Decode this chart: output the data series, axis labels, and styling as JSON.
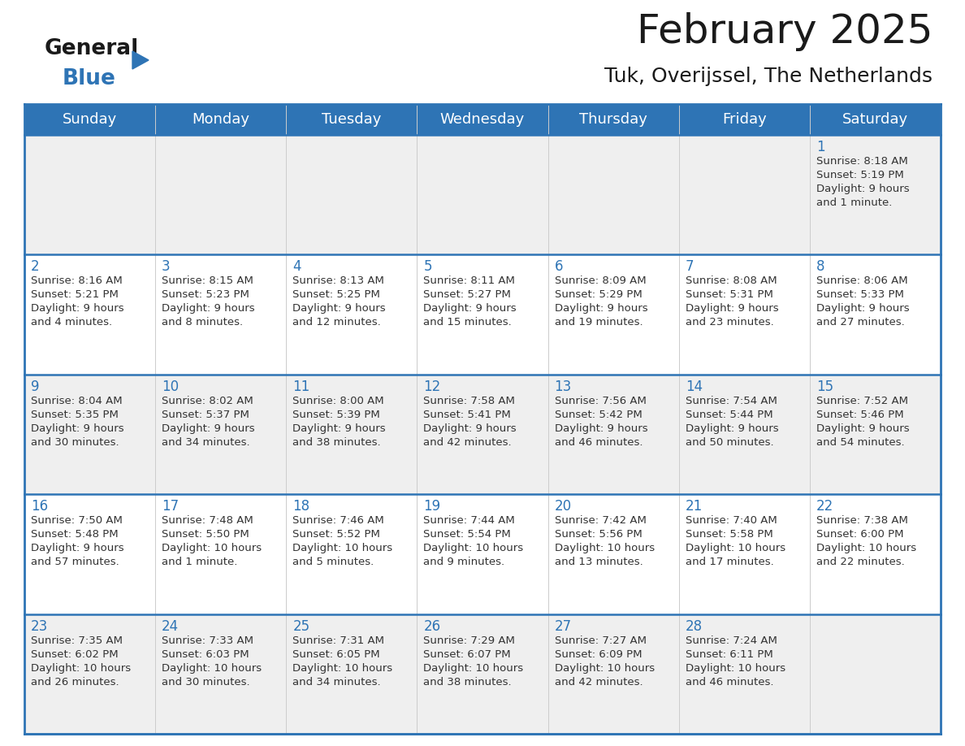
{
  "title": "February 2025",
  "subtitle": "Tuk, Overijssel, The Netherlands",
  "days_of_week": [
    "Sunday",
    "Monday",
    "Tuesday",
    "Wednesday",
    "Thursday",
    "Friday",
    "Saturday"
  ],
  "header_bg": "#2E74B5",
  "header_text": "#FFFFFF",
  "row_bg_odd": "#EFEFEF",
  "row_bg_even": "#FFFFFF",
  "day_num_color": "#2E74B5",
  "cell_text_color": "#333333",
  "border_color": "#2E74B5",
  "background_color": "#FFFFFF",
  "logo_general_color": "#1a1a1a",
  "logo_blue_color": "#2E74B5",
  "title_fontsize": 36,
  "subtitle_fontsize": 18,
  "header_fontsize": 13,
  "day_num_fontsize": 12,
  "cell_text_fontsize": 9.5,
  "calendar_data": [
    [
      {
        "day": null,
        "info": null
      },
      {
        "day": null,
        "info": null
      },
      {
        "day": null,
        "info": null
      },
      {
        "day": null,
        "info": null
      },
      {
        "day": null,
        "info": null
      },
      {
        "day": null,
        "info": null
      },
      {
        "day": "1",
        "info": "Sunrise: 8:18 AM\nSunset: 5:19 PM\nDaylight: 9 hours\nand 1 minute."
      }
    ],
    [
      {
        "day": "2",
        "info": "Sunrise: 8:16 AM\nSunset: 5:21 PM\nDaylight: 9 hours\nand 4 minutes."
      },
      {
        "day": "3",
        "info": "Sunrise: 8:15 AM\nSunset: 5:23 PM\nDaylight: 9 hours\nand 8 minutes."
      },
      {
        "day": "4",
        "info": "Sunrise: 8:13 AM\nSunset: 5:25 PM\nDaylight: 9 hours\nand 12 minutes."
      },
      {
        "day": "5",
        "info": "Sunrise: 8:11 AM\nSunset: 5:27 PM\nDaylight: 9 hours\nand 15 minutes."
      },
      {
        "day": "6",
        "info": "Sunrise: 8:09 AM\nSunset: 5:29 PM\nDaylight: 9 hours\nand 19 minutes."
      },
      {
        "day": "7",
        "info": "Sunrise: 8:08 AM\nSunset: 5:31 PM\nDaylight: 9 hours\nand 23 minutes."
      },
      {
        "day": "8",
        "info": "Sunrise: 8:06 AM\nSunset: 5:33 PM\nDaylight: 9 hours\nand 27 minutes."
      }
    ],
    [
      {
        "day": "9",
        "info": "Sunrise: 8:04 AM\nSunset: 5:35 PM\nDaylight: 9 hours\nand 30 minutes."
      },
      {
        "day": "10",
        "info": "Sunrise: 8:02 AM\nSunset: 5:37 PM\nDaylight: 9 hours\nand 34 minutes."
      },
      {
        "day": "11",
        "info": "Sunrise: 8:00 AM\nSunset: 5:39 PM\nDaylight: 9 hours\nand 38 minutes."
      },
      {
        "day": "12",
        "info": "Sunrise: 7:58 AM\nSunset: 5:41 PM\nDaylight: 9 hours\nand 42 minutes."
      },
      {
        "day": "13",
        "info": "Sunrise: 7:56 AM\nSunset: 5:42 PM\nDaylight: 9 hours\nand 46 minutes."
      },
      {
        "day": "14",
        "info": "Sunrise: 7:54 AM\nSunset: 5:44 PM\nDaylight: 9 hours\nand 50 minutes."
      },
      {
        "day": "15",
        "info": "Sunrise: 7:52 AM\nSunset: 5:46 PM\nDaylight: 9 hours\nand 54 minutes."
      }
    ],
    [
      {
        "day": "16",
        "info": "Sunrise: 7:50 AM\nSunset: 5:48 PM\nDaylight: 9 hours\nand 57 minutes."
      },
      {
        "day": "17",
        "info": "Sunrise: 7:48 AM\nSunset: 5:50 PM\nDaylight: 10 hours\nand 1 minute."
      },
      {
        "day": "18",
        "info": "Sunrise: 7:46 AM\nSunset: 5:52 PM\nDaylight: 10 hours\nand 5 minutes."
      },
      {
        "day": "19",
        "info": "Sunrise: 7:44 AM\nSunset: 5:54 PM\nDaylight: 10 hours\nand 9 minutes."
      },
      {
        "day": "20",
        "info": "Sunrise: 7:42 AM\nSunset: 5:56 PM\nDaylight: 10 hours\nand 13 minutes."
      },
      {
        "day": "21",
        "info": "Sunrise: 7:40 AM\nSunset: 5:58 PM\nDaylight: 10 hours\nand 17 minutes."
      },
      {
        "day": "22",
        "info": "Sunrise: 7:38 AM\nSunset: 6:00 PM\nDaylight: 10 hours\nand 22 minutes."
      }
    ],
    [
      {
        "day": "23",
        "info": "Sunrise: 7:35 AM\nSunset: 6:02 PM\nDaylight: 10 hours\nand 26 minutes."
      },
      {
        "day": "24",
        "info": "Sunrise: 7:33 AM\nSunset: 6:03 PM\nDaylight: 10 hours\nand 30 minutes."
      },
      {
        "day": "25",
        "info": "Sunrise: 7:31 AM\nSunset: 6:05 PM\nDaylight: 10 hours\nand 34 minutes."
      },
      {
        "day": "26",
        "info": "Sunrise: 7:29 AM\nSunset: 6:07 PM\nDaylight: 10 hours\nand 38 minutes."
      },
      {
        "day": "27",
        "info": "Sunrise: 7:27 AM\nSunset: 6:09 PM\nDaylight: 10 hours\nand 42 minutes."
      },
      {
        "day": "28",
        "info": "Sunrise: 7:24 AM\nSunset: 6:11 PM\nDaylight: 10 hours\nand 46 minutes."
      },
      {
        "day": null,
        "info": null
      }
    ]
  ]
}
